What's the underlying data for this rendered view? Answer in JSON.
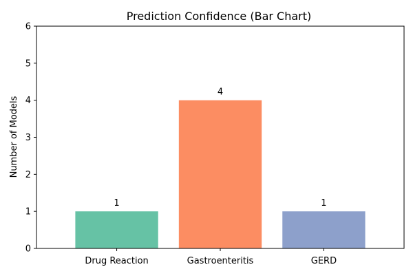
{
  "chart_data": {
    "type": "bar",
    "title": "Prediction Confidence (Bar Chart)",
    "xlabel": "",
    "ylabel": "Number of Models",
    "categories": [
      "Drug Reaction",
      "Gastroenteritis",
      "GERD"
    ],
    "values": [
      1,
      4,
      1
    ],
    "data_labels": [
      "1",
      "4",
      "1"
    ],
    "colors": [
      "#66c2a5",
      "#fc8d62",
      "#8da0cb"
    ],
    "ylim": [
      0,
      6
    ],
    "yticks": [
      0,
      1,
      2,
      3,
      4,
      5,
      6
    ],
    "grid": false,
    "legend": "none"
  }
}
